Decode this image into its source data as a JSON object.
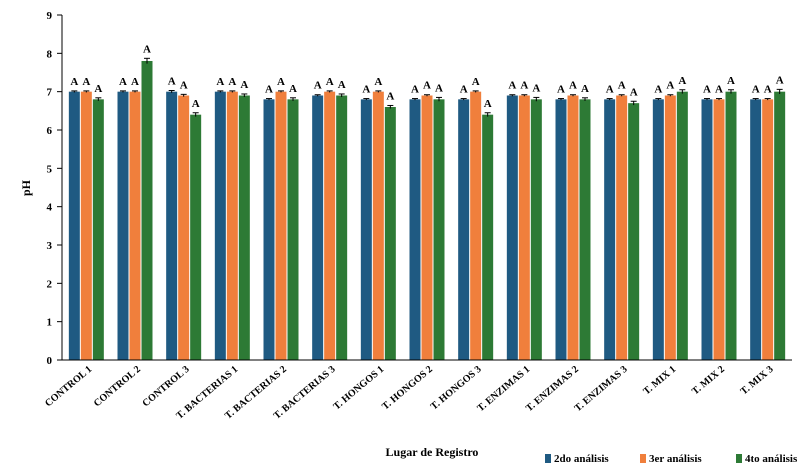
{
  "chart_data": {
    "type": "bar",
    "xlabel": "Lugar de Registro",
    "ylabel": "pH",
    "ylim": [
      0,
      9
    ],
    "yticks": [
      0,
      1,
      2,
      3,
      4,
      5,
      6,
      7,
      8,
      9
    ],
    "grid": false,
    "legend_position": "bottom-right",
    "categories": [
      "CONTROL 1",
      "CONTROL 2",
      "CONTROL 3",
      "T. BACTERIAS 1",
      "T. BACTERIAS 2",
      "T. BACTERIAS 3",
      "T. HONGOS 1",
      "T. HONGOS 2",
      "T. HONGOS 3",
      "T. ENZIMAS 1",
      "T. ENZIMAS 2",
      "T. ENZIMAS 3",
      "T. MIX 1",
      "T. MIX 2",
      "T. MIX 3"
    ],
    "series": [
      {
        "name": "2do análisis",
        "color": "#1f5a82",
        "values": [
          7.0,
          7.0,
          7.0,
          7.0,
          6.8,
          6.9,
          6.8,
          6.8,
          6.8,
          6.9,
          6.8,
          6.8,
          6.8,
          6.8,
          6.8
        ],
        "errors": [
          0.02,
          0.02,
          0.03,
          0.02,
          0.02,
          0.02,
          0.02,
          0.02,
          0.02,
          0.02,
          0.02,
          0.02,
          0.02,
          0.02,
          0.02
        ],
        "labels": [
          "A",
          "A",
          "A",
          "A",
          "A",
          "A",
          "A",
          "A",
          "A",
          "A",
          "A",
          "A",
          "A",
          "A",
          "A"
        ]
      },
      {
        "name": "3er análisis",
        "color": "#f07f3c",
        "values": [
          7.0,
          7.0,
          6.9,
          7.0,
          7.0,
          7.0,
          7.0,
          6.9,
          7.0,
          6.9,
          6.9,
          6.9,
          6.9,
          6.8,
          6.8
        ],
        "errors": [
          0.02,
          0.02,
          0.03,
          0.02,
          0.02,
          0.02,
          0.02,
          0.02,
          0.02,
          0.02,
          0.02,
          0.02,
          0.02,
          0.02,
          0.02
        ],
        "labels": [
          "A",
          "A",
          "A",
          "A",
          "A",
          "A",
          "A",
          "A",
          "A",
          "A",
          "A",
          "A",
          "A",
          "A",
          "A"
        ]
      },
      {
        "name": "4to análisis",
        "color": "#2d7a35",
        "values": [
          6.8,
          7.8,
          6.4,
          6.9,
          6.8,
          6.9,
          6.6,
          6.8,
          6.4,
          6.8,
          6.8,
          6.7,
          7.0,
          7.0,
          7.0
        ],
        "errors": [
          0.04,
          0.07,
          0.05,
          0.04,
          0.04,
          0.04,
          0.04,
          0.05,
          0.05,
          0.05,
          0.04,
          0.05,
          0.05,
          0.05,
          0.06
        ],
        "labels": [
          "A",
          "A",
          "A",
          "A",
          "A",
          "A",
          "A",
          "A",
          "A",
          "A",
          "A",
          "A",
          "A",
          "A",
          "A"
        ]
      }
    ]
  }
}
